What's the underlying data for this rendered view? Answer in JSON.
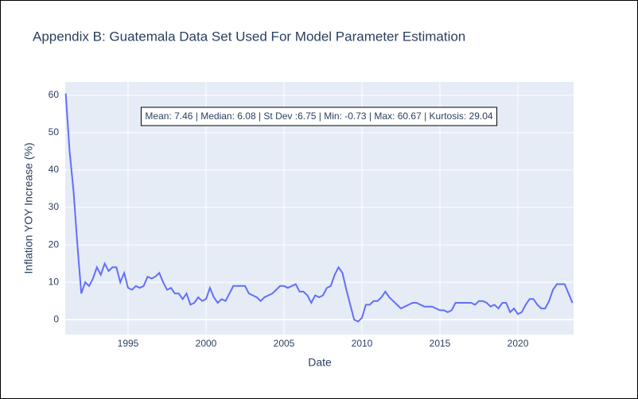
{
  "chart_data": {
    "type": "line",
    "title": "Appendix B: Guatemala Data Set Used For Model Parameter Estimation",
    "x_label": "Date",
    "y_label": "Inflation YOY Increase (%)",
    "annotation": "Mean: 7.46 | Median: 6.08 | St Dev :6.75 | Min: -0.73 | Max: 60.67 | Kurtosis: 29.04",
    "x": [
      1991.0,
      1991.25,
      1991.5,
      1991.75,
      1992.0,
      1992.25,
      1992.5,
      1992.75,
      1993.0,
      1993.25,
      1993.5,
      1993.75,
      1994.0,
      1994.25,
      1994.5,
      1994.75,
      1995.0,
      1995.25,
      1995.5,
      1995.75,
      1996.0,
      1996.25,
      1996.5,
      1996.75,
      1997.0,
      1997.25,
      1997.5,
      1997.75,
      1998.0,
      1998.25,
      1998.5,
      1998.75,
      1999.0,
      1999.25,
      1999.5,
      1999.75,
      2000.0,
      2000.25,
      2000.5,
      2000.75,
      2001.0,
      2001.25,
      2001.5,
      2001.75,
      2002.0,
      2002.25,
      2002.5,
      2002.75,
      2003.0,
      2003.25,
      2003.5,
      2003.75,
      2004.0,
      2004.25,
      2004.5,
      2004.75,
      2005.0,
      2005.25,
      2005.5,
      2005.75,
      2006.0,
      2006.25,
      2006.5,
      2006.75,
      2007.0,
      2007.25,
      2007.5,
      2007.75,
      2008.0,
      2008.25,
      2008.5,
      2008.75,
      2009.0,
      2009.25,
      2009.5,
      2009.75,
      2010.0,
      2010.25,
      2010.5,
      2010.75,
      2011.0,
      2011.25,
      2011.5,
      2011.75,
      2012.0,
      2012.25,
      2012.5,
      2012.75,
      2013.0,
      2013.25,
      2013.5,
      2013.75,
      2014.0,
      2014.25,
      2014.5,
      2014.75,
      2015.0,
      2015.25,
      2015.5,
      2015.75,
      2016.0,
      2016.25,
      2016.5,
      2016.75,
      2017.0,
      2017.25,
      2017.5,
      2017.75,
      2018.0,
      2018.25,
      2018.5,
      2018.75,
      2019.0,
      2019.25,
      2019.5,
      2019.75,
      2020.0,
      2020.25,
      2020.5,
      2020.75,
      2021.0,
      2021.25,
      2021.5,
      2021.75,
      2022.0,
      2022.25,
      2022.5,
      2022.75,
      2023.0,
      2023.25,
      2023.5
    ],
    "series": [
      {
        "color": "#636efa",
        "values": [
          60.5,
          45,
          34.5,
          20,
          7,
          10,
          9,
          11,
          14,
          12,
          15,
          13,
          14,
          14,
          10,
          12.5,
          8.5,
          8,
          9,
          8.5,
          9,
          11.5,
          11,
          11.5,
          12.5,
          10,
          8,
          8.5,
          7,
          7,
          5.5,
          7,
          4,
          4.5,
          6,
          5,
          5.5,
          8.5,
          6,
          4.5,
          5.5,
          5,
          7,
          9,
          9,
          9,
          9,
          7,
          6.5,
          6,
          5,
          6,
          6.5,
          7,
          8,
          9,
          9,
          8.5,
          9,
          9.5,
          7.5,
          7.5,
          6.5,
          4.5,
          6.5,
          6,
          6.5,
          8.5,
          9,
          12,
          14,
          12.5,
          8,
          4,
          0,
          -0.5,
          0.5,
          4,
          4,
          5,
          5,
          6,
          7.5,
          6,
          5,
          4,
          3,
          3.5,
          4,
          4.5,
          4.5,
          4,
          3.5,
          3.5,
          3.5,
          3,
          2.5,
          2.5,
          2,
          2.5,
          4.5,
          4.5,
          4.5,
          4.5,
          4.5,
          4,
          5,
          5,
          4.5,
          3.5,
          4,
          3,
          4.5,
          4.5,
          2,
          3,
          1.5,
          2,
          4,
          5.5,
          5.5,
          4,
          3,
          3,
          5,
          8,
          9.5,
          9.5,
          9.5,
          7,
          4.5
        ]
      }
    ],
    "xlim": [
      1990.97,
      2023.57
    ],
    "xticks": [
      1995,
      2000,
      2005,
      2010,
      2015,
      2020
    ],
    "ylim": [
      -4.0,
      63.6
    ],
    "yticks": [
      0,
      10,
      20,
      30,
      40,
      50,
      60
    ],
    "grid": true
  }
}
